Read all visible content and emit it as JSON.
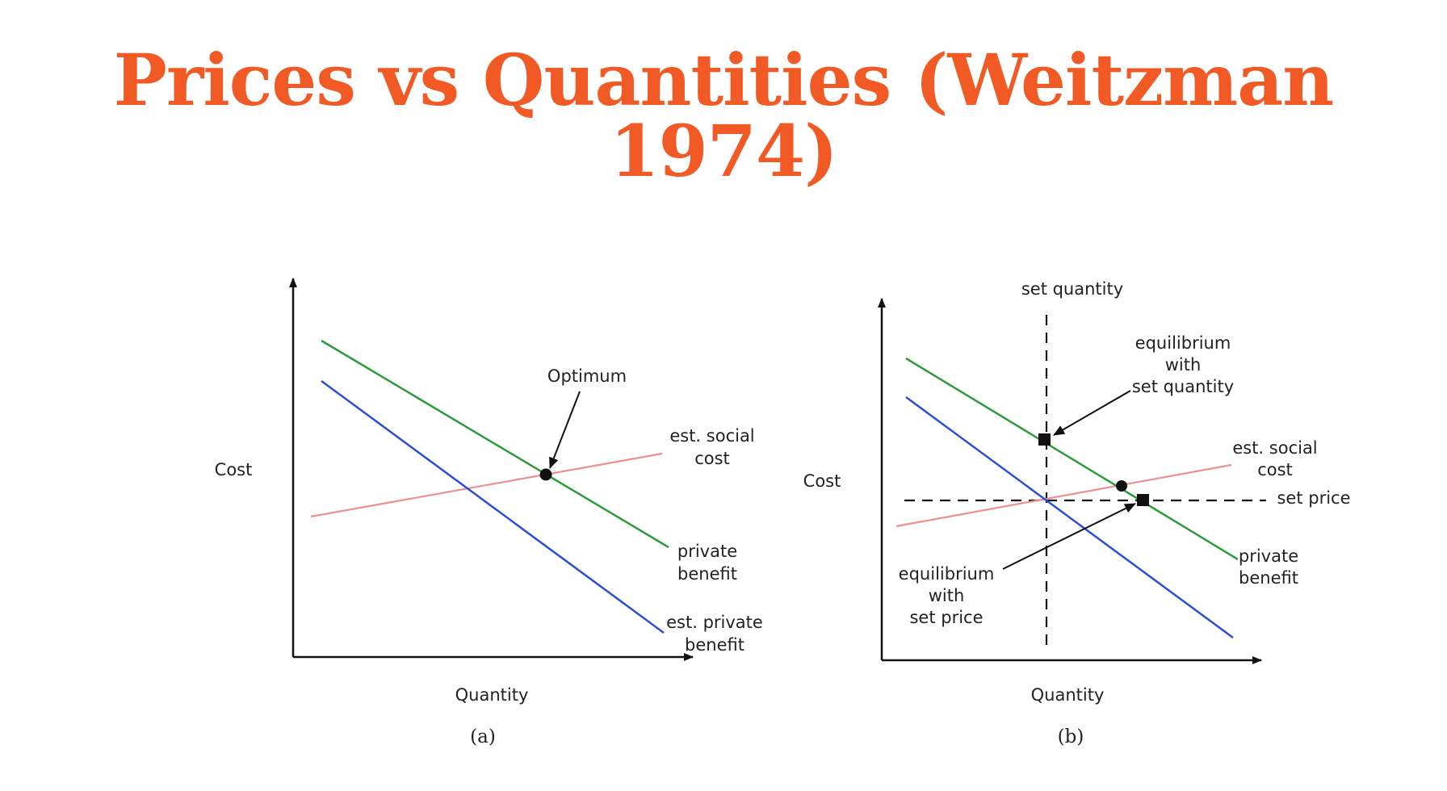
{
  "title": "Prices vs Quantities (Weitzman 1974)",
  "colors": {
    "title": "#f15a24",
    "private_benefit": "#2e9a3a",
    "est_private_benefit": "#2a4fd6",
    "est_social_cost": "#ee8f8f",
    "axis": "#111111"
  },
  "panel_a": {
    "caption": "(a)",
    "y_label": "Cost",
    "x_label": "Quantity",
    "optimum_label": "Optimum",
    "social_cost_label": [
      "est. social",
      "cost"
    ],
    "private_benefit_label": [
      "private",
      "benefit"
    ],
    "est_private_benefit_label": [
      "est. private",
      "benefit"
    ]
  },
  "panel_b": {
    "caption": "(b)",
    "y_label": "Cost",
    "x_label": "Quantity",
    "set_quantity_label": "set quantity",
    "set_price_label": "set price",
    "eq_quantity_label": [
      "equilibrium",
      "with",
      "set quantity"
    ],
    "eq_price_label": [
      "equilibrium",
      "with",
      "set price"
    ],
    "social_cost_label": [
      "est. social",
      "cost"
    ],
    "private_benefit_label": [
      "private",
      "benefit"
    ]
  }
}
